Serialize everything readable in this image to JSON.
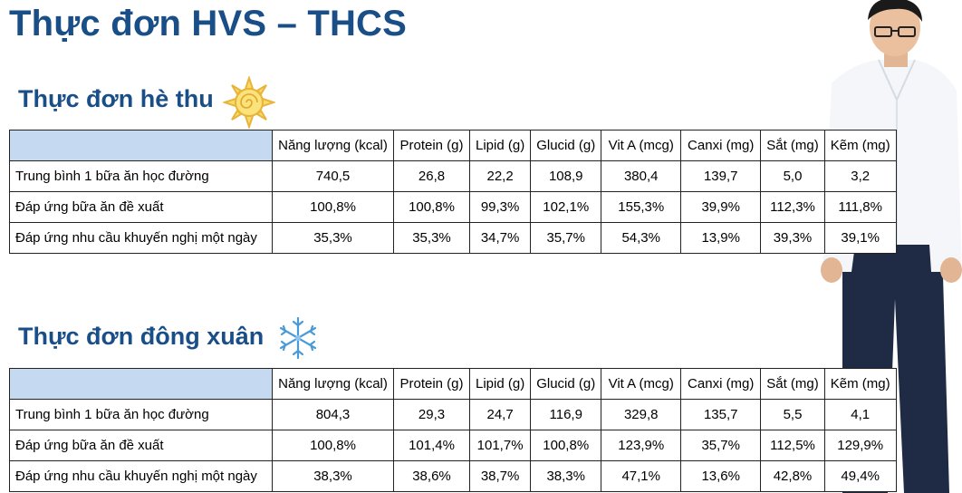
{
  "title": "Thực đơn HVS – THCS",
  "columns": [
    "Năng lượng (kcal)",
    "Protein (g)",
    "Lipid (g)",
    "Glucid (g)",
    "Vit A (mcg)",
    "Canxi (mg)",
    "Sắt (mg)",
    "Kẽm (mg)"
  ],
  "row_labels": [
    "Trung bình 1 bữa ăn học đường",
    "Đáp ứng bữa ăn đề xuất",
    "Đáp ứng nhu cầu khuyến nghị một ngày"
  ],
  "sections": [
    {
      "heading": "Thực đơn hè thu",
      "icon": "sun-icon",
      "rows": [
        [
          "740,5",
          "26,8",
          "22,2",
          "108,9",
          "380,4",
          "139,7",
          "5,0",
          "3,2"
        ],
        [
          "100,8%",
          "100,8%",
          "99,3%",
          "102,1%",
          "155,3%",
          "39,9%",
          "112,3%",
          "111,8%"
        ],
        [
          "35,3%",
          "35,3%",
          "34,7%",
          "35,7%",
          "54,3%",
          "13,9%",
          "39,3%",
          "39,1%"
        ]
      ]
    },
    {
      "heading": "Thực đơn đông xuân",
      "icon": "snowflake-icon",
      "rows": [
        [
          "804,3",
          "29,3",
          "24,7",
          "116,9",
          "329,8",
          "135,7",
          "5,5",
          "4,1"
        ],
        [
          "100,8%",
          "101,4%",
          "101,7%",
          "100,8%",
          "123,9%",
          "35,7%",
          "112,5%",
          "129,9%"
        ],
        [
          "38,3%",
          "38,6%",
          "38,7%",
          "38,3%",
          "47,1%",
          "13,6%",
          "42,8%",
          "49,4%"
        ]
      ]
    }
  ],
  "colors": {
    "title": "#1a4e86",
    "header_corner": "#c5d9f1"
  }
}
